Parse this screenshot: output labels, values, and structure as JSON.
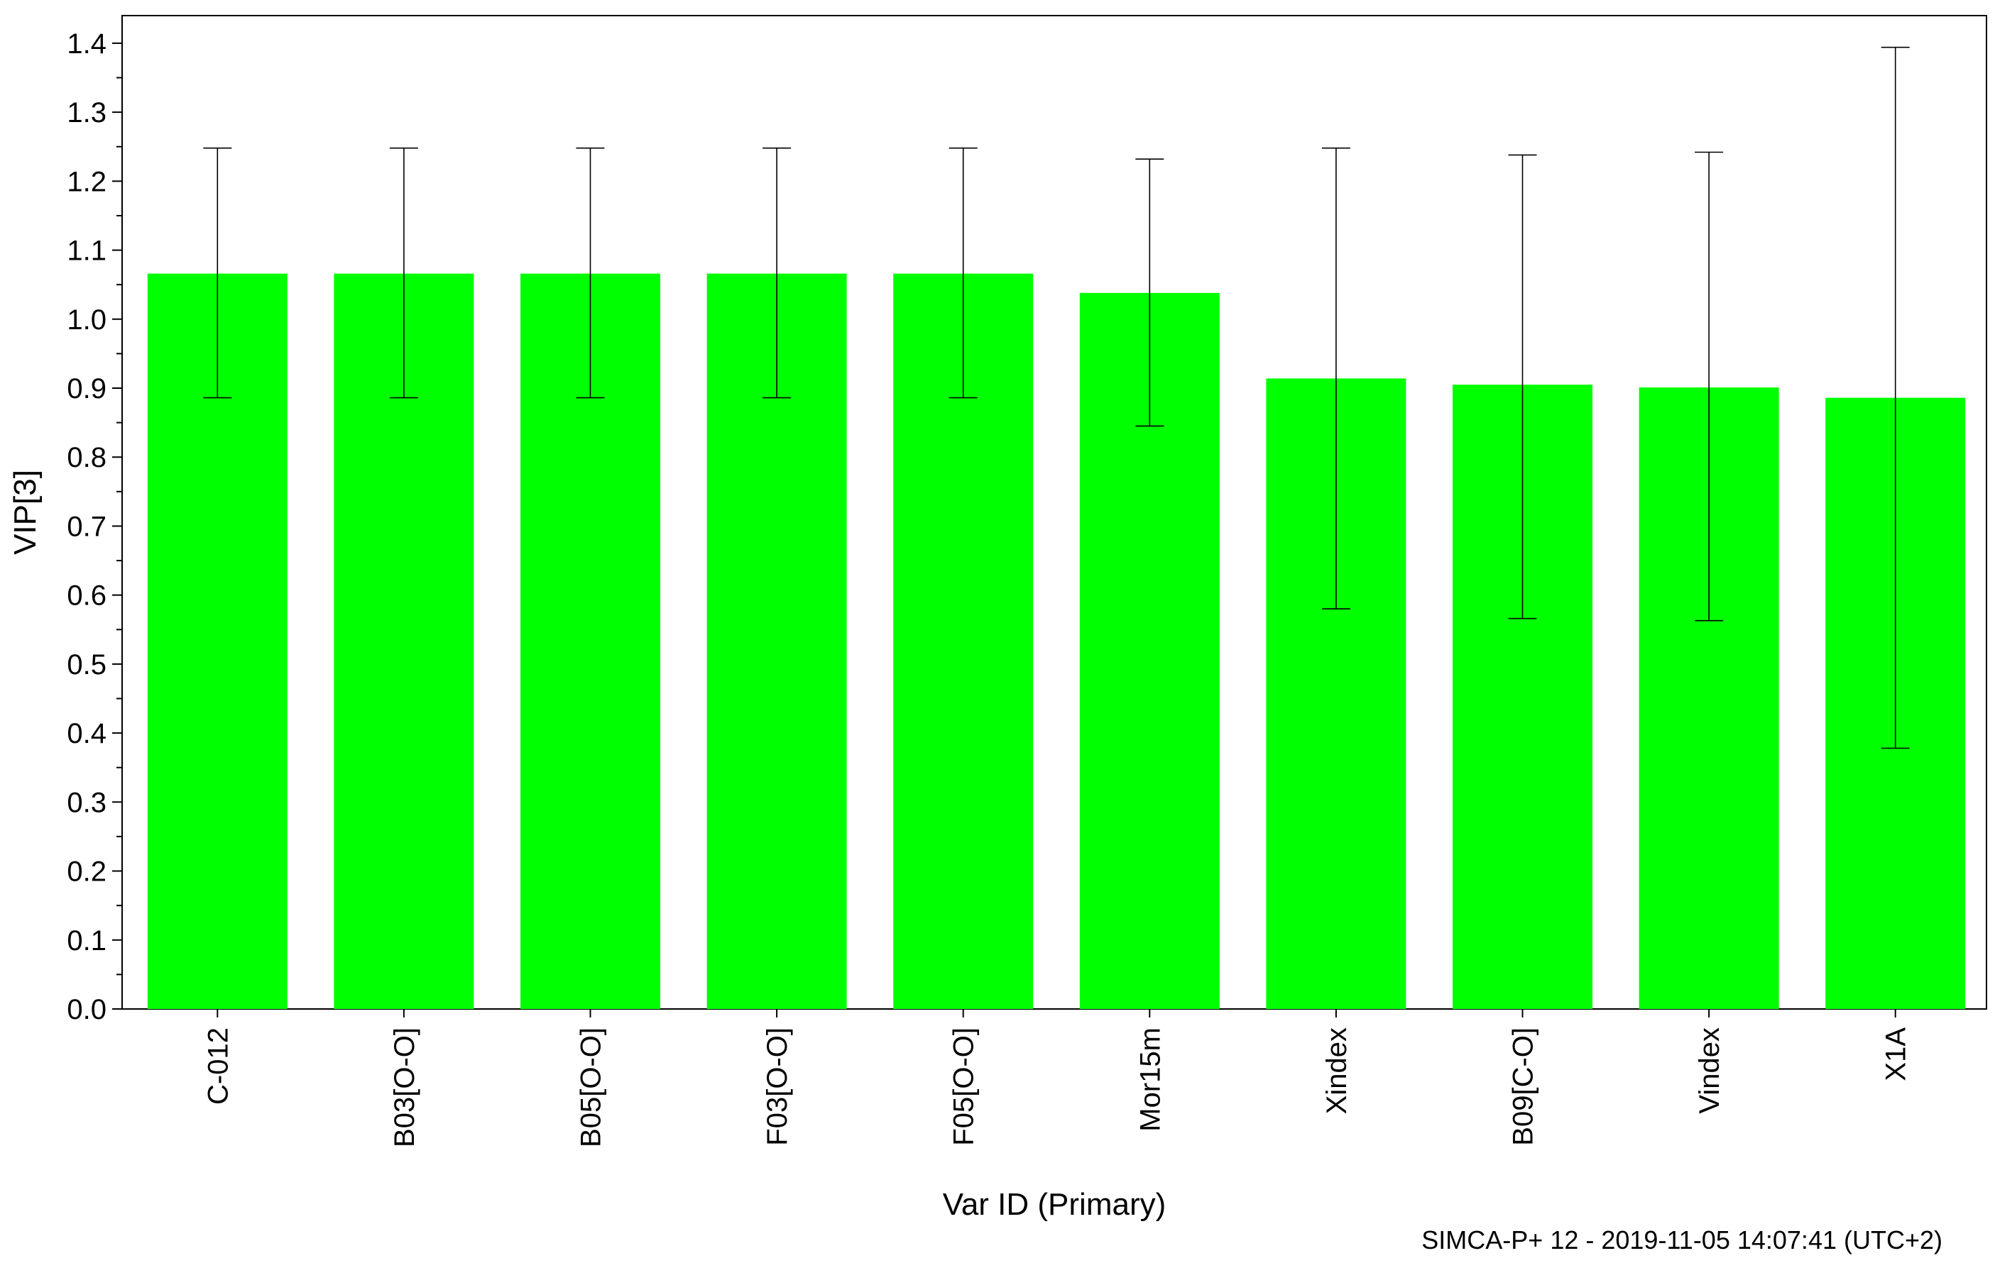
{
  "chart_data": {
    "type": "bar",
    "xlabel": "Var ID (Primary)",
    "ylabel": "VIP[3]",
    "ylim": [
      0,
      1.44
    ],
    "yticks": [
      "0.0",
      "0.1",
      "0.2",
      "0.3",
      "0.4",
      "0.5",
      "0.6",
      "0.7",
      "0.8",
      "0.9",
      "1.0",
      "1.1",
      "1.2",
      "1.3",
      "1.4"
    ],
    "categories": [
      "C-012",
      "B03[O-O]",
      "B05[O-O]",
      "F03[O-O]",
      "F05[O-O]",
      "Mor15m",
      "Xindex",
      "B09[C-O]",
      "Vindex",
      "X1A"
    ],
    "values": [
      1.066,
      1.066,
      1.066,
      1.066,
      1.066,
      1.038,
      0.914,
      0.905,
      0.901,
      0.886
    ],
    "error_low": [
      0.886,
      0.886,
      0.886,
      0.886,
      0.886,
      0.845,
      0.58,
      0.566,
      0.563,
      0.378
    ],
    "error_high": [
      1.248,
      1.248,
      1.248,
      1.248,
      1.248,
      1.232,
      1.248,
      1.238,
      1.242,
      1.394
    ],
    "bar_color": "#00ff00",
    "grid": false,
    "legend": "none"
  },
  "footer": {
    "text": "SIMCA-P+ 12 - 2019-11-05 14:07:41 (UTC+2)"
  }
}
